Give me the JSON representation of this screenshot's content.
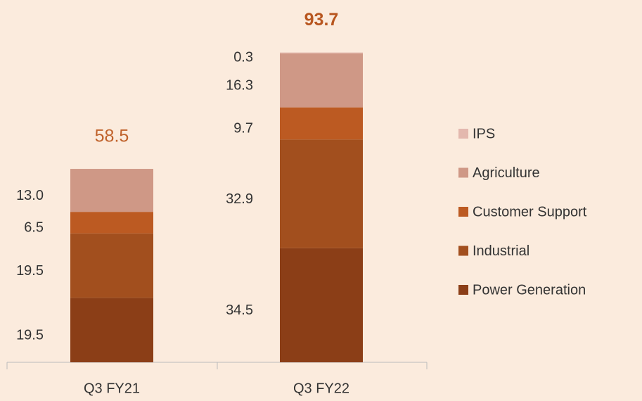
{
  "chart_data": {
    "type": "stacked_bar",
    "categories": [
      "Q3 FY21",
      "Q3 FY22"
    ],
    "series": [
      {
        "name": "Power Generation",
        "color": "#8b3e17",
        "values": [
          19.5,
          34.5
        ]
      },
      {
        "name": "Industrial",
        "color": "#a24f1e",
        "values": [
          19.5,
          32.9
        ]
      },
      {
        "name": "Customer Support",
        "color": "#bc5a22",
        "values": [
          6.5,
          9.7
        ]
      },
      {
        "name": "Agriculture",
        "color": "#cf9886",
        "values": [
          13.0,
          16.3
        ],
        "value_labels": [
          "13.0",
          "16.3"
        ]
      },
      {
        "name": "IPS",
        "color": "#e3b8ae",
        "values": [
          null,
          0.3
        ]
      }
    ],
    "totals": [
      58.5,
      93.7
    ],
    "total_colors": [
      "#c0622b",
      "#b8561f"
    ],
    "ylim": [
      0,
      100
    ],
    "legend": "right"
  }
}
